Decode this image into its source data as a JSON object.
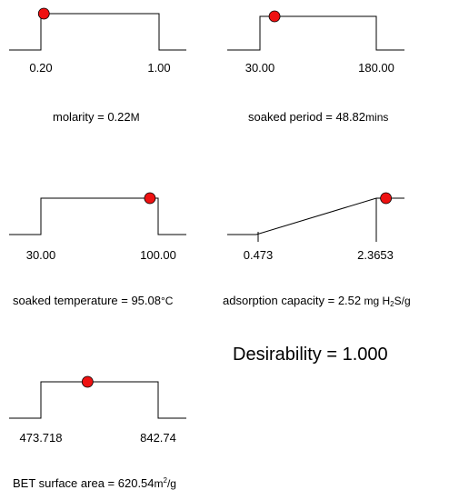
{
  "chart_data": [
    {
      "type": "line",
      "shape": "box",
      "low_label": "0.20",
      "high_label": "1.00",
      "range": [
        0.2,
        1.0
      ],
      "point": 0.22,
      "caption_prefix": "molarity = ",
      "caption_value": "0.22",
      "caption_unit": "M"
    },
    {
      "type": "line",
      "shape": "box",
      "low_label": "30.00",
      "high_label": "180.00",
      "range": [
        30.0,
        180.0
      ],
      "point": 48.82,
      "caption_prefix": "soaked period = ",
      "caption_value": "48.82",
      "caption_unit": "mins"
    },
    {
      "type": "line",
      "shape": "box",
      "low_label": "30.00",
      "high_label": "100.00",
      "range": [
        30.0,
        100.0
      ],
      "point": 95.08,
      "caption_prefix": "soaked temperature = ",
      "caption_value": "95.08",
      "caption_unit": "°C"
    },
    {
      "type": "line",
      "shape": "ramp",
      "low_label": "0.473",
      "high_label": "2.3653",
      "range": [
        0.473,
        2.3653
      ],
      "point": 2.52,
      "caption_prefix": "adsorption capacity = ",
      "caption_value": "2.52",
      "caption_unit_pre": "mg H",
      "caption_unit_sub": "2",
      "caption_unit_post": "S/g"
    },
    {
      "type": "line",
      "shape": "box",
      "low_label": "473.718",
      "high_label": "842.74",
      "range": [
        473.718,
        842.74
      ],
      "point": 620.54,
      "caption_prefix": "BET surface area = ",
      "caption_value": "620.54",
      "caption_unit_pre": "m",
      "caption_unit_sup": "2",
      "caption_unit_post": "/g"
    }
  ],
  "desirability": "Desirability = 1.000",
  "colors": {
    "point": "#ee1111",
    "line": "#000000"
  }
}
